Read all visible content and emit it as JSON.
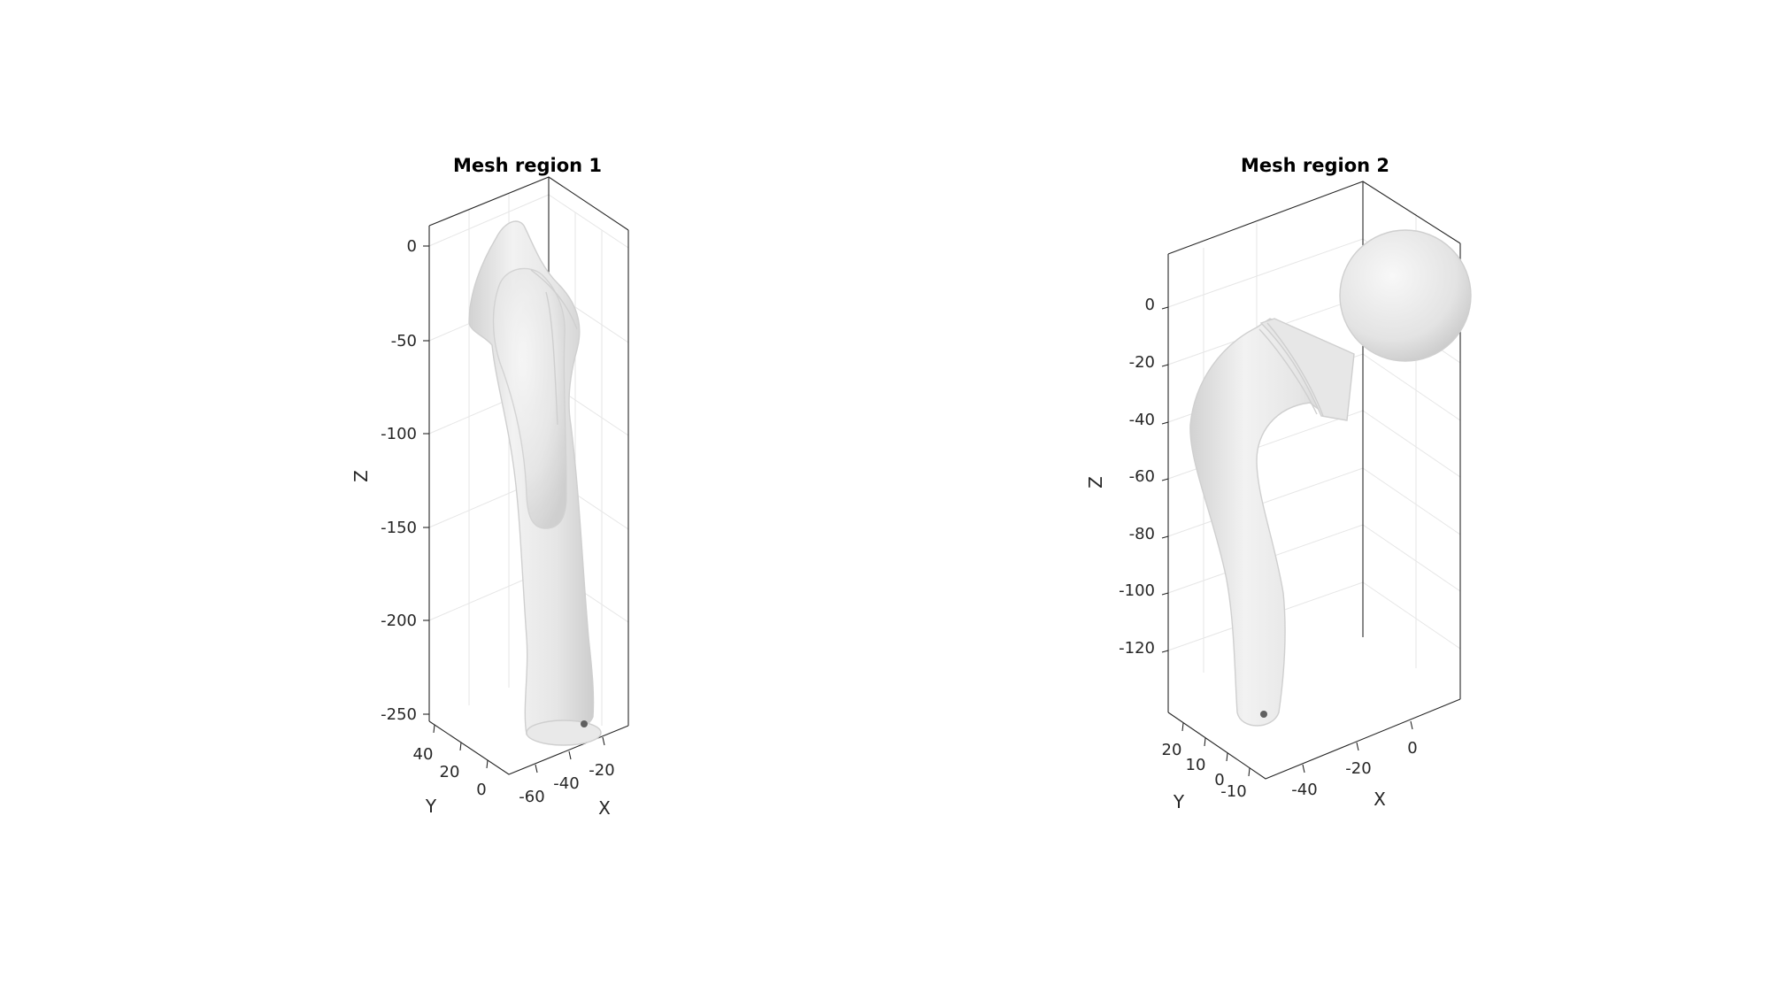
{
  "chart_data": [
    {
      "type": "3d-mesh",
      "title": "Mesh region 1",
      "xlabel": "X",
      "ylabel": "Y",
      "zlabel": "Z",
      "xticks": [
        "-60",
        "-40",
        "-20"
      ],
      "yticks": [
        "40",
        "20",
        "0"
      ],
      "zticks": [
        "0",
        "-50",
        "-100",
        "-150",
        "-200",
        "-250"
      ],
      "grid": true,
      "mesh_color": "#e0e0e0",
      "marker_color": "#606060"
    },
    {
      "type": "3d-mesh",
      "title": "Mesh region 2",
      "xlabel": "X",
      "ylabel": "Y",
      "zlabel": "Z",
      "xticks": [
        "-40",
        "-20",
        "0"
      ],
      "yticks": [
        "20",
        "10",
        "0",
        "-10"
      ],
      "zticks": [
        "0",
        "-20",
        "-40",
        "-60",
        "-80",
        "-100",
        "-120"
      ],
      "grid": true,
      "mesh_color": "#e0e0e0",
      "marker_color": "#606060"
    }
  ]
}
